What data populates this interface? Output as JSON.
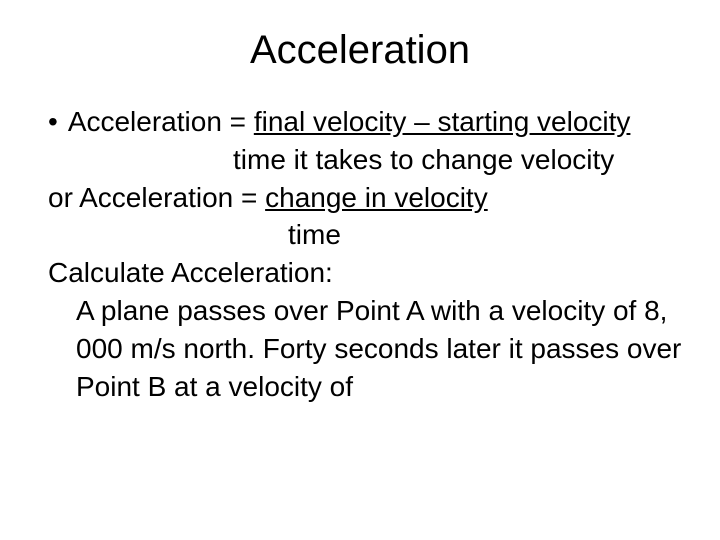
{
  "slide": {
    "title": "Acceleration",
    "bullet_glyph": "•",
    "line1_prefix": "Acceleration = ",
    "line1_underline": "final velocity – starting velocity",
    "line2_prefix": "time it takes to change velocity",
    "line3_prefix": "or Acceleration = ",
    "line3_underline": "change in velocity",
    "line4": "time",
    "line5": "Calculate Acceleration:",
    "line6": "A plane passes over Point A with a velocity of 8, 000 m/s north. Forty seconds later it passes over Point B at a velocity of"
  },
  "style": {
    "background_color": "#ffffff",
    "text_color": "#000000",
    "title_fontsize": 40,
    "body_fontsize": 28,
    "font_family": "Arial"
  }
}
